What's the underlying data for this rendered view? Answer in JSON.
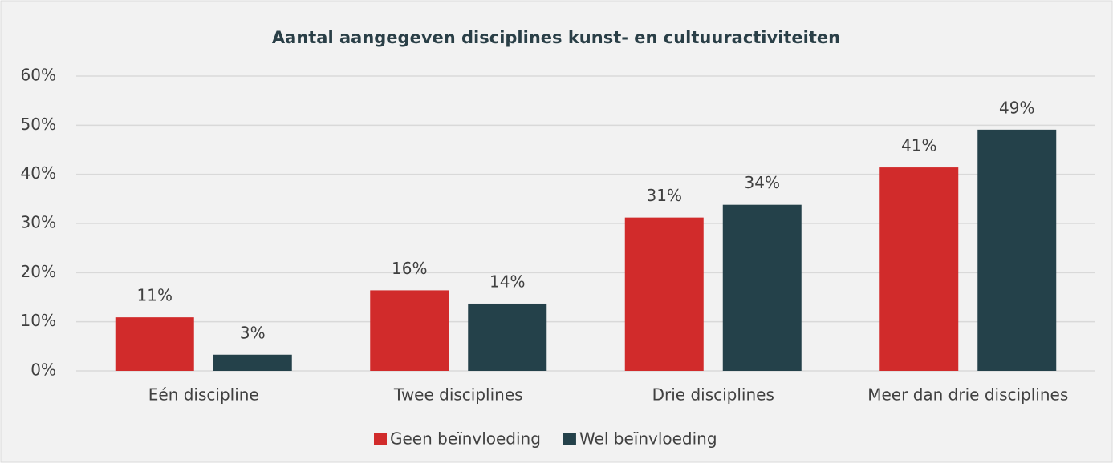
{
  "chart_data": {
    "type": "bar",
    "title": "Aantal aangegeven disciplines kunst- en cultuuractiviteiten",
    "categories": [
      "Eén discipline",
      "Twee disciplines",
      "Drie disciplines",
      "Meer dan drie disciplines"
    ],
    "series": [
      {
        "name": "Geen beïnvloeding",
        "color": "#d12b2b",
        "values": [
          10.9,
          16.4,
          31.2,
          41.4
        ],
        "value_labels": [
          "11%",
          "16%",
          "31%",
          "41%"
        ]
      },
      {
        "name": "Wel beïnvloeding",
        "color": "#24414a",
        "values": [
          3.3,
          13.7,
          33.8,
          49.1
        ],
        "value_labels": [
          "3%",
          "14%",
          "34%",
          "49%"
        ]
      }
    ],
    "ylim": [
      0,
      60
    ],
    "yticks": [
      {
        "value": 0,
        "label": "0%"
      },
      {
        "value": 10,
        "label": "10%"
      },
      {
        "value": 20,
        "label": "20%"
      },
      {
        "value": 30,
        "label": "30%"
      },
      {
        "value": 40,
        "label": "40%"
      },
      {
        "value": 50,
        "label": "50%"
      },
      {
        "value": 60,
        "label": "60%"
      }
    ],
    "grid": true,
    "legend": "bottom"
  }
}
